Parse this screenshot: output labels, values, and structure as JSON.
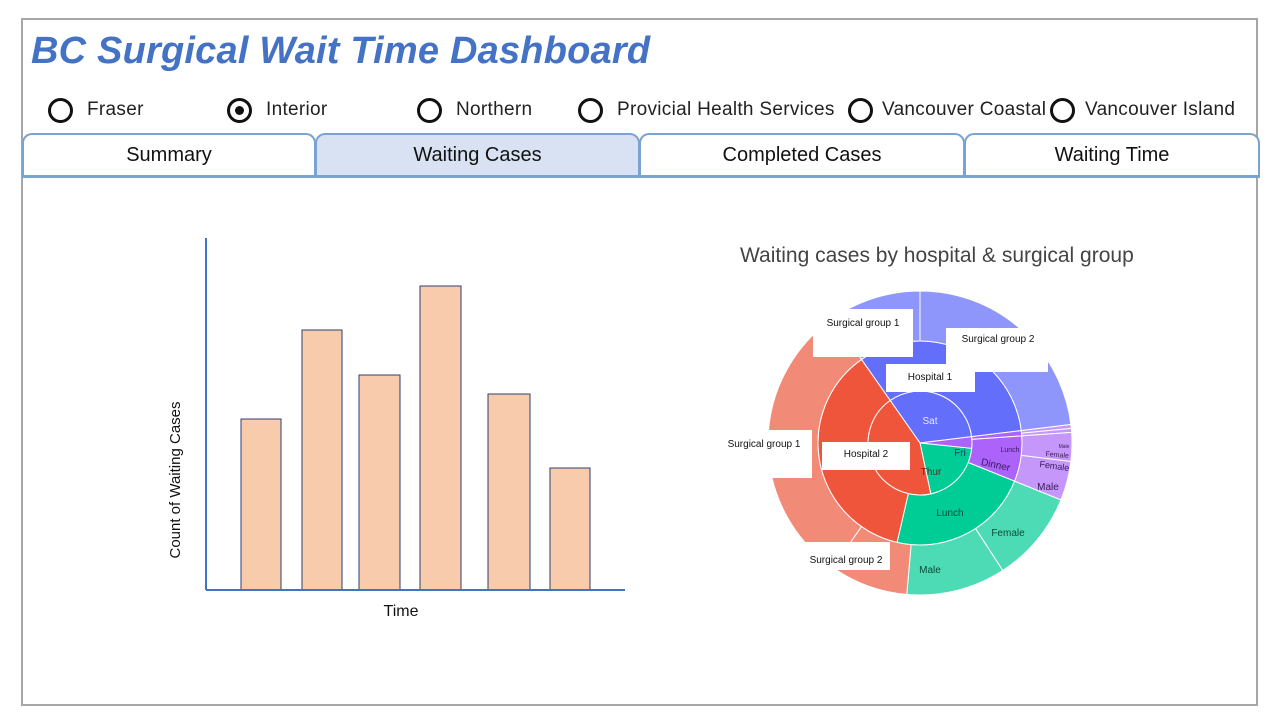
{
  "app": {
    "title": "BC Surgical Wait Time Dashboard"
  },
  "regions": [
    {
      "label": "Fraser",
      "selected": false
    },
    {
      "label": "Interior",
      "selected": true
    },
    {
      "label": "Northern",
      "selected": false
    },
    {
      "label": "Provicial Health Services",
      "selected": false
    },
    {
      "label": "Vancouver Coastal",
      "selected": false
    },
    {
      "label": "Vancouver Island",
      "selected": false
    }
  ],
  "tabs": [
    {
      "label": "Summary",
      "active": false
    },
    {
      "label": "Waiting Cases",
      "active": true
    },
    {
      "label": "Completed Cases",
      "active": false
    },
    {
      "label": "Waiting Time",
      "active": false
    }
  ],
  "bar_chart_text": {
    "xlabel": "Time",
    "ylabel": "Count of Waiting Cases"
  },
  "sunburst_text": {
    "title": "Waiting cases by hospital & surgical group",
    "callouts": [
      "Surgical group 1",
      "Surgical group 2",
      "Hospital 1",
      "Hospital 2",
      "Surgical group 1",
      "Surgical group 2"
    ],
    "inner": [
      "Sat",
      "Thur",
      "Fri"
    ],
    "middle": [
      "Lunch",
      "Dinner",
      "Lunch"
    ],
    "outer": [
      "Female",
      "Male",
      "Female",
      "Male",
      "Female",
      "Male"
    ]
  },
  "colors": {
    "accent": "#4472c4",
    "bar_fill": "#f8cbad",
    "tab_border": "#7aa3d2",
    "tab_active": "#d9e2f3",
    "sat": "#636efa",
    "sat_outer": "#8f96fb",
    "thur": "#ef553b",
    "thur_outer": "#f28a78",
    "lunch": "#00cc96",
    "lunch_outer": "#4ddbb5",
    "fri": "#ab63fa",
    "fri_outer": "#c697fb"
  },
  "chart_data": [
    {
      "type": "bar",
      "categories": [
        "",
        "",
        "",
        "",
        "",
        ""
      ],
      "values": [
        171,
        260,
        215,
        304,
        196,
        122
      ],
      "xlabel": "Time",
      "ylabel": "Count of Waiting Cases",
      "ylim": [
        0,
        350
      ],
      "grid": false
    },
    {
      "type": "pie",
      "title": "Waiting cases by hospital & surgical group",
      "labels": [
        "Sat",
        "Thur",
        "Fri"
      ],
      "values": [
        35,
        34,
        8
      ]
    }
  ]
}
